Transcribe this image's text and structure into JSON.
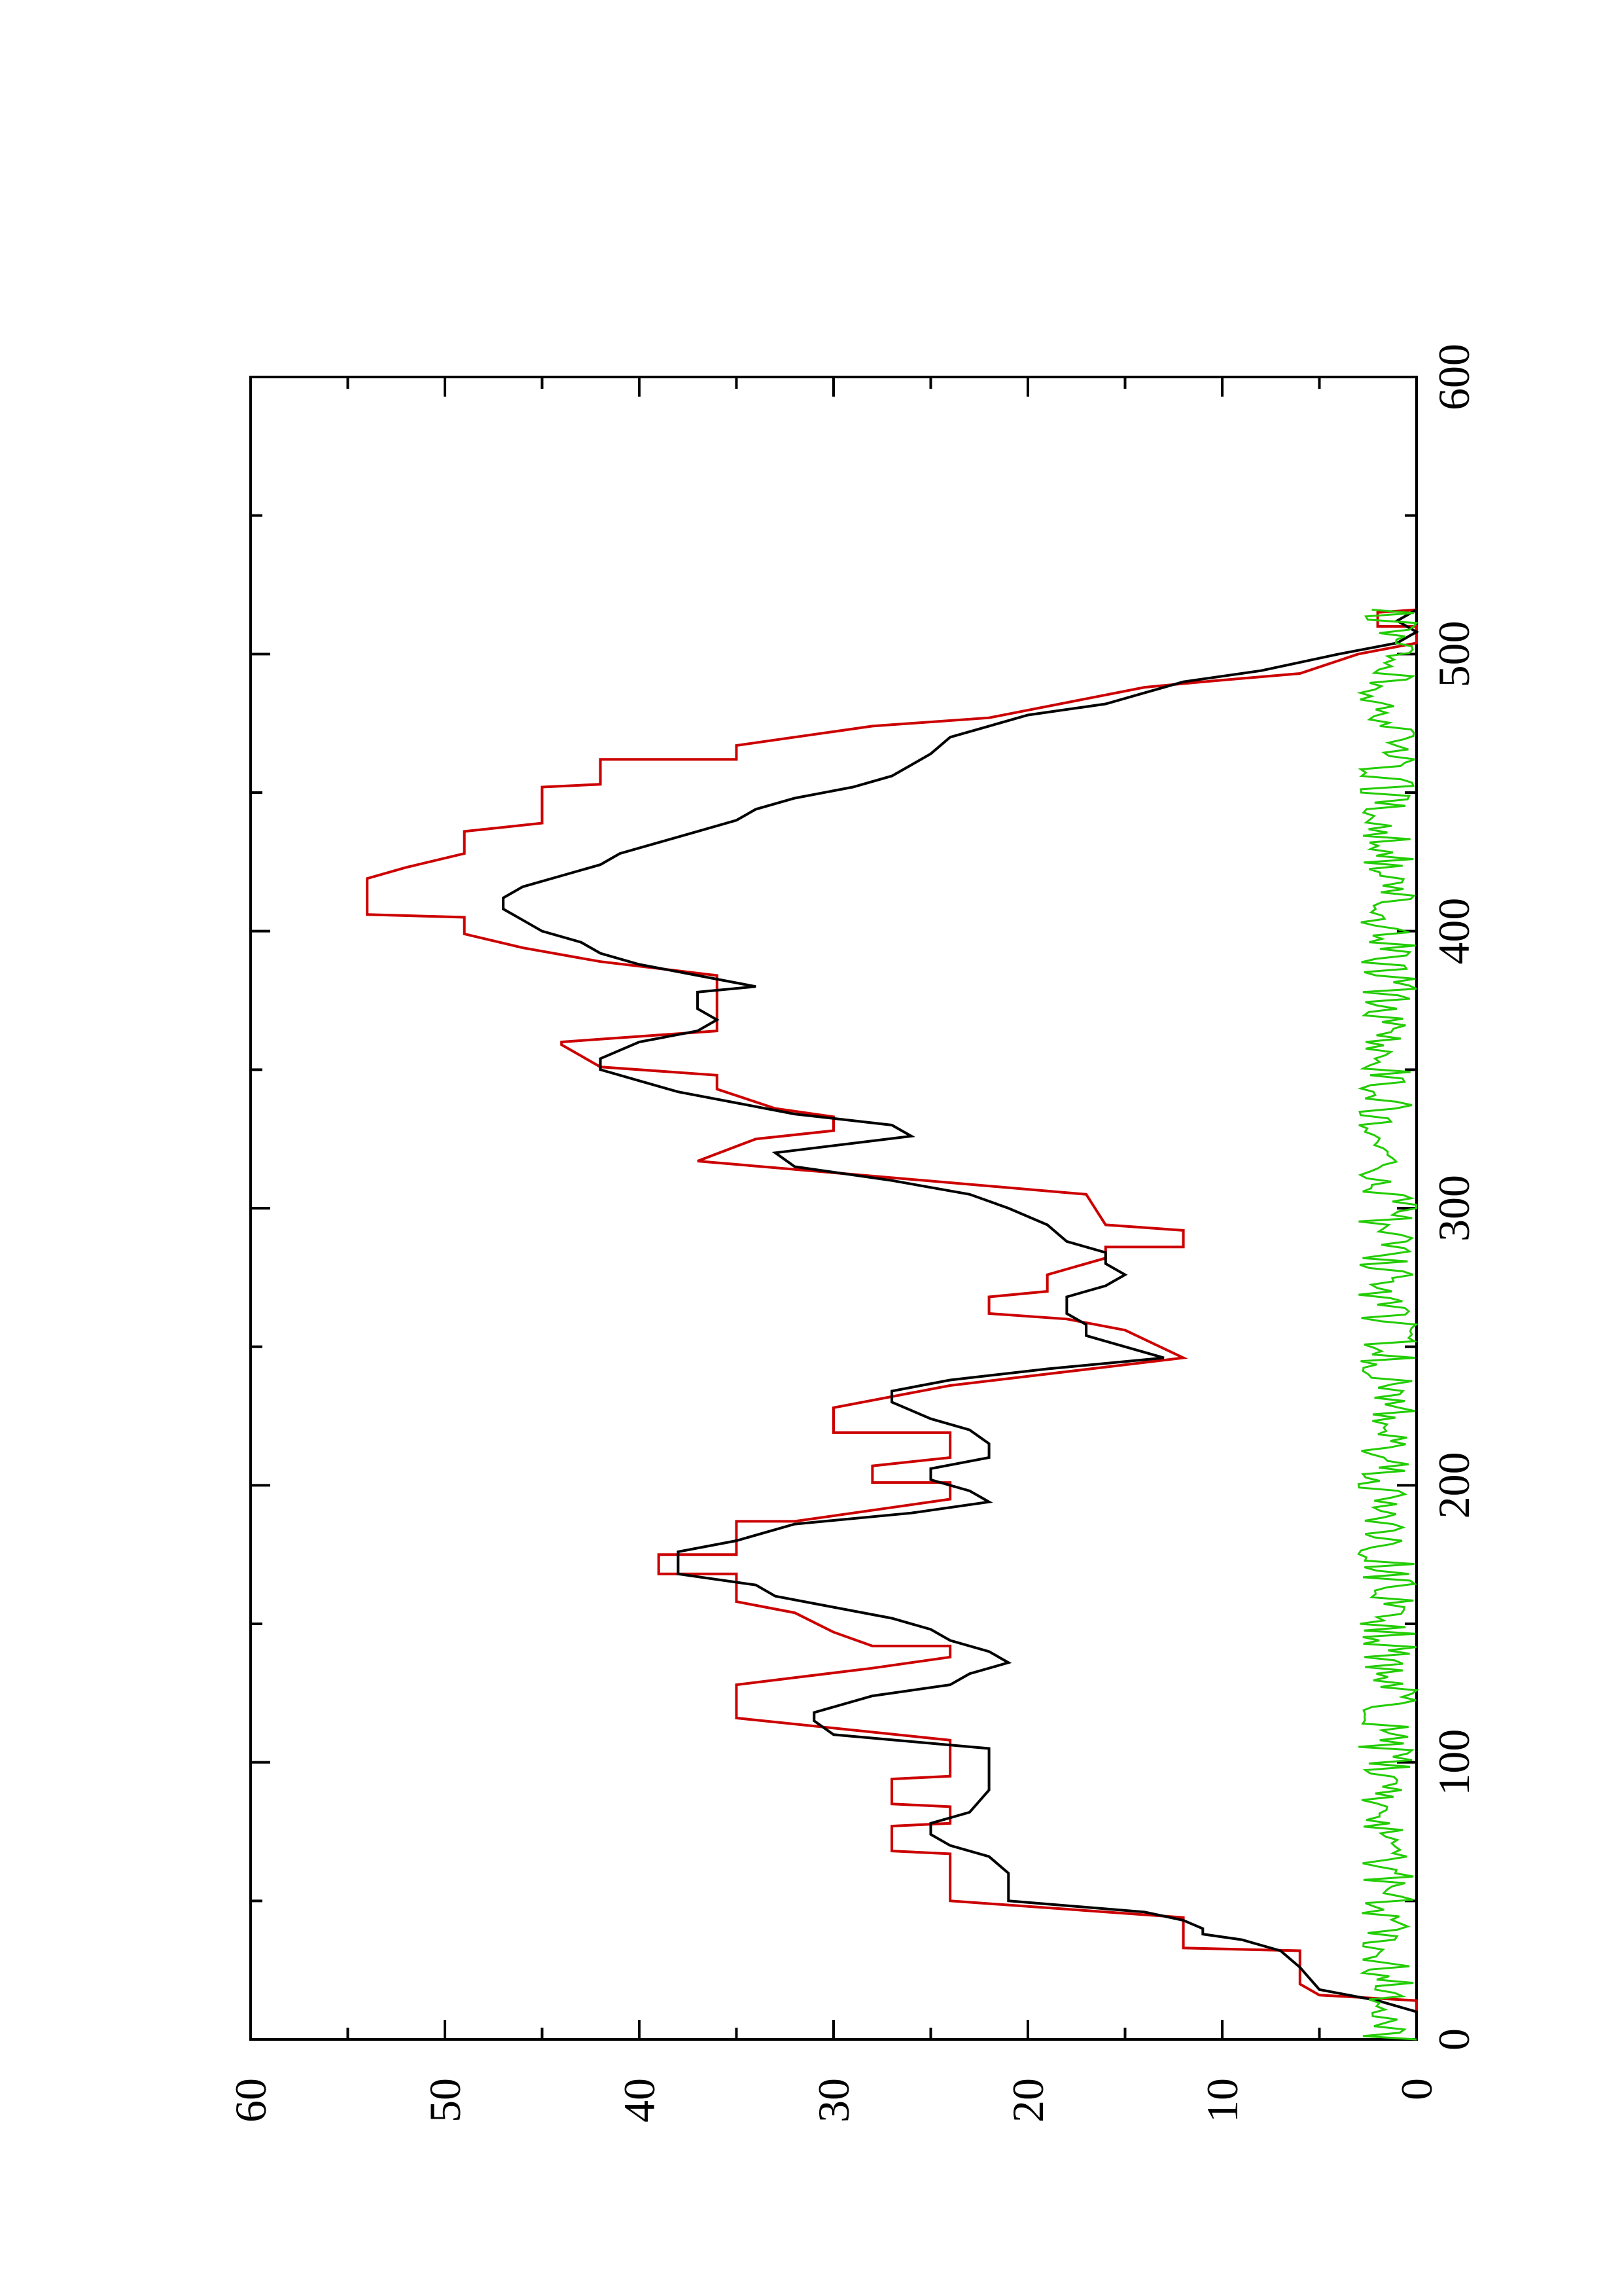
{
  "chart_data": {
    "type": "line",
    "orientation": "rotated 90 degrees counter-clockwise (x axis runs bottom-to-top along the right edge)",
    "title": "",
    "xlabel": "",
    "ylabel": "",
    "xlim": [
      0,
      600
    ],
    "ylim": [
      0,
      60
    ],
    "x_ticks": [
      "0",
      "100",
      "200",
      "300",
      "400",
      "500",
      "600"
    ],
    "y_ticks": [
      "0",
      "10",
      "20",
      "30",
      "40",
      "50",
      "60"
    ],
    "grid": false,
    "legend": "none",
    "series": [
      {
        "color": "#cc0000",
        "style": "step",
        "points": [
          [
            0,
            0
          ],
          [
            14,
            0
          ],
          [
            16,
            5
          ],
          [
            20,
            6
          ],
          [
            32,
            6
          ],
          [
            33,
            12
          ],
          [
            44,
            12
          ],
          [
            50,
            24
          ],
          [
            67,
            24
          ],
          [
            68,
            27
          ],
          [
            77,
            27
          ],
          [
            78,
            24
          ],
          [
            84,
            24
          ],
          [
            85,
            27
          ],
          [
            94,
            27
          ],
          [
            95,
            24
          ],
          [
            108,
            24
          ],
          [
            116,
            35
          ],
          [
            128,
            35
          ],
          [
            134,
            28
          ],
          [
            138,
            24
          ],
          [
            142,
            24
          ],
          [
            142,
            28
          ],
          [
            147,
            30
          ],
          [
            154,
            32
          ],
          [
            158,
            35
          ],
          [
            168,
            35
          ],
          [
            168,
            39
          ],
          [
            175,
            39
          ],
          [
            175,
            35
          ],
          [
            187,
            35
          ],
          [
            187,
            32
          ],
          [
            195,
            24
          ],
          [
            201,
            24
          ],
          [
            201,
            28
          ],
          [
            207,
            28
          ],
          [
            210,
            24
          ],
          [
            219,
            24
          ],
          [
            219,
            30
          ],
          [
            228,
            30
          ],
          [
            236,
            24
          ],
          [
            246,
            12
          ],
          [
            256,
            15
          ],
          [
            260,
            18
          ],
          [
            262,
            22
          ],
          [
            268,
            22
          ],
          [
            270,
            19
          ],
          [
            276,
            19
          ],
          [
            282,
            16
          ],
          [
            286,
            16
          ],
          [
            286,
            12
          ],
          [
            292,
            12
          ],
          [
            294,
            16
          ],
          [
            305,
            17
          ],
          [
            317,
            37
          ],
          [
            325,
            34
          ],
          [
            328,
            30
          ],
          [
            333,
            30
          ],
          [
            336,
            33
          ],
          [
            343,
            36
          ],
          [
            348,
            36
          ],
          [
            351,
            42
          ],
          [
            359,
            44
          ],
          [
            360,
            44
          ],
          [
            362,
            40
          ],
          [
            364,
            36
          ],
          [
            384,
            36
          ],
          [
            389,
            42
          ],
          [
            394,
            46
          ],
          [
            399,
            49
          ],
          [
            405,
            49
          ],
          [
            406,
            54
          ],
          [
            419,
            54
          ],
          [
            423,
            52
          ],
          [
            428,
            49
          ],
          [
            436,
            49
          ],
          [
            439,
            45
          ],
          [
            452,
            45
          ],
          [
            453,
            42
          ],
          [
            462,
            42
          ],
          [
            462,
            35
          ],
          [
            467,
            35
          ],
          [
            474,
            28
          ],
          [
            477,
            22
          ],
          [
            488,
            14
          ],
          [
            490,
            11
          ],
          [
            493,
            6
          ],
          [
            500,
            3
          ],
          [
            504,
            0
          ],
          [
            510,
            0
          ],
          [
            510,
            2
          ],
          [
            515,
            2
          ],
          [
            516,
            0
          ]
        ]
      },
      {
        "color": "#000000",
        "style": "line",
        "points": [
          [
            0,
            0
          ],
          [
            10,
            0
          ],
          [
            14,
            2
          ],
          [
            18,
            5
          ],
          [
            26,
            6
          ],
          [
            32,
            7
          ],
          [
            36,
            9
          ],
          [
            38,
            11
          ],
          [
            40,
            11
          ],
          [
            43,
            12
          ],
          [
            46,
            14
          ],
          [
            50,
            21
          ],
          [
            54,
            21
          ],
          [
            60,
            21
          ],
          [
            66,
            22
          ],
          [
            70,
            24
          ],
          [
            74,
            25
          ],
          [
            78,
            25
          ],
          [
            82,
            23
          ],
          [
            90,
            22
          ],
          [
            98,
            22
          ],
          [
            105,
            22
          ],
          [
            110,
            30
          ],
          [
            115,
            31
          ],
          [
            118,
            31
          ],
          [
            124,
            28
          ],
          [
            128,
            24
          ],
          [
            132,
            23
          ],
          [
            136,
            21
          ],
          [
            140,
            22
          ],
          [
            144,
            24
          ],
          [
            148,
            25
          ],
          [
            152,
            27
          ],
          [
            156,
            30
          ],
          [
            160,
            33
          ],
          [
            164,
            34
          ],
          [
            168,
            38
          ],
          [
            172,
            38
          ],
          [
            176,
            38
          ],
          [
            180,
            35
          ],
          [
            186,
            32
          ],
          [
            190,
            26
          ],
          [
            194,
            22
          ],
          [
            198,
            23
          ],
          [
            202,
            25
          ],
          [
            206,
            25
          ],
          [
            210,
            22
          ],
          [
            215,
            22
          ],
          [
            220,
            23
          ],
          [
            224,
            25
          ],
          [
            230,
            27
          ],
          [
            234,
            27
          ],
          [
            238,
            24
          ],
          [
            242,
            19
          ],
          [
            246,
            13
          ],
          [
            250,
            15
          ],
          [
            254,
            17
          ],
          [
            258,
            17
          ],
          [
            262,
            18
          ],
          [
            268,
            18
          ],
          [
            272,
            16
          ],
          [
            276,
            15
          ],
          [
            280,
            16
          ],
          [
            284,
            16
          ],
          [
            288,
            18
          ],
          [
            294,
            19
          ],
          [
            300,
            21
          ],
          [
            305,
            23
          ],
          [
            310,
            27
          ],
          [
            315,
            32
          ],
          [
            320,
            33
          ],
          [
            326,
            26
          ],
          [
            330,
            27
          ],
          [
            334,
            32
          ],
          [
            338,
            35
          ],
          [
            342,
            38
          ],
          [
            346,
            40
          ],
          [
            350,
            42
          ],
          [
            354,
            42
          ],
          [
            360,
            40
          ],
          [
            364,
            37
          ],
          [
            368,
            36
          ],
          [
            372,
            37
          ],
          [
            378,
            37
          ],
          [
            380,
            34
          ],
          [
            384,
            37
          ],
          [
            388,
            40
          ],
          [
            392,
            42
          ],
          [
            396,
            43
          ],
          [
            400,
            45
          ],
          [
            404,
            46
          ],
          [
            408,
            47
          ],
          [
            412,
            47
          ],
          [
            416,
            46
          ],
          [
            420,
            44
          ],
          [
            424,
            42
          ],
          [
            428,
            41
          ],
          [
            432,
            39
          ],
          [
            436,
            37
          ],
          [
            440,
            35
          ],
          [
            444,
            34
          ],
          [
            448,
            32
          ],
          [
            452,
            29
          ],
          [
            456,
            27
          ],
          [
            460,
            26
          ],
          [
            464,
            25
          ],
          [
            470,
            24
          ],
          [
            474,
            22
          ],
          [
            478,
            20
          ],
          [
            482,
            16
          ],
          [
            486,
            14
          ],
          [
            490,
            12
          ],
          [
            494,
            8
          ],
          [
            500,
            4
          ],
          [
            504,
            1
          ],
          [
            508,
            0
          ],
          [
            512,
            1
          ],
          [
            516,
            0
          ]
        ]
      },
      {
        "color": "#22cc00",
        "style": "noise",
        "x_range": [
          0,
          516
        ],
        "baseline": 0,
        "amplitude": 3,
        "seed": 7
      }
    ]
  }
}
